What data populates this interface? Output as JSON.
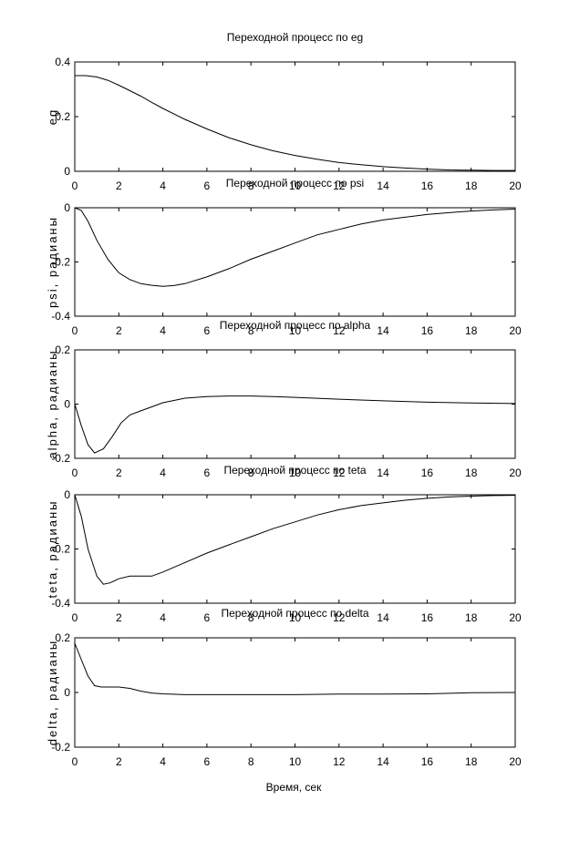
{
  "figure": {
    "xlabel": "Время, сек"
  },
  "chart_data": [
    {
      "type": "line",
      "title": "Переходной процесс по eg",
      "ylabel": "eg",
      "xlabel": "",
      "xlim": [
        0,
        20
      ],
      "ylim": [
        0,
        0.4
      ],
      "xticks": [
        "0",
        "2",
        "4",
        "6",
        "8",
        "10",
        "12",
        "14",
        "16",
        "18",
        "20"
      ],
      "yticks": [
        {
          "v": 0.4,
          "label": "0.4"
        },
        {
          "v": 0.2,
          "label": "0.2"
        },
        {
          "v": 0,
          "label": "0"
        }
      ],
      "grid": false,
      "x": [
        0,
        0.5,
        1,
        1.5,
        2,
        2.5,
        3,
        3.5,
        4,
        5,
        6,
        7,
        8,
        9,
        10,
        11,
        12,
        13,
        14,
        15,
        16,
        17,
        18,
        19,
        20
      ],
      "y": [
        0.35,
        0.35,
        0.345,
        0.333,
        0.315,
        0.295,
        0.275,
        0.252,
        0.23,
        0.19,
        0.155,
        0.123,
        0.097,
        0.075,
        0.058,
        0.044,
        0.032,
        0.024,
        0.017,
        0.012,
        0.008,
        0.005,
        0.004,
        0.003,
        0.003
      ]
    },
    {
      "type": "line",
      "title": "Переходной процесс по psi",
      "ylabel": "psi, радианы",
      "xlabel": "",
      "xlim": [
        0,
        20
      ],
      "ylim": [
        -0.4,
        0
      ],
      "xticks": [
        "0",
        "2",
        "4",
        "6",
        "8",
        "10",
        "12",
        "14",
        "16",
        "18",
        "20"
      ],
      "yticks": [
        {
          "v": 0,
          "label": "0"
        },
        {
          "v": -0.2,
          "label": "-0.2"
        },
        {
          "v": -0.4,
          "label": "-0.4"
        }
      ],
      "grid": false,
      "x": [
        0,
        0.3,
        0.6,
        1,
        1.5,
        2,
        2.5,
        3,
        3.5,
        4,
        4.5,
        5,
        6,
        7,
        8,
        9,
        10,
        11,
        12,
        13,
        14,
        15,
        16,
        17,
        18,
        19,
        20
      ],
      "y": [
        0,
        -0.01,
        -0.05,
        -0.12,
        -0.19,
        -0.24,
        -0.265,
        -0.28,
        -0.286,
        -0.29,
        -0.287,
        -0.28,
        -0.255,
        -0.225,
        -0.19,
        -0.16,
        -0.13,
        -0.1,
        -0.08,
        -0.06,
        -0.045,
        -0.035,
        -0.025,
        -0.018,
        -0.012,
        -0.008,
        -0.005
      ]
    },
    {
      "type": "line",
      "title": "Переходной процесс по alpha",
      "ylabel": "alpha, радианы",
      "xlabel": "",
      "xlim": [
        0,
        20
      ],
      "ylim": [
        -0.2,
        0.2
      ],
      "xticks": [
        "0",
        "2",
        "4",
        "6",
        "8",
        "10",
        "12",
        "14",
        "16",
        "18",
        "20"
      ],
      "yticks": [
        {
          "v": 0.2,
          "label": "0.2"
        },
        {
          "v": 0,
          "label": "0"
        },
        {
          "v": -0.2,
          "label": "-0.2"
        }
      ],
      "grid": false,
      "x": [
        0,
        0.3,
        0.6,
        0.9,
        1.3,
        1.7,
        2.1,
        2.5,
        3,
        3.5,
        4,
        5,
        6,
        7,
        8,
        9,
        10,
        12,
        14,
        16,
        18,
        20
      ],
      "y": [
        0,
        -0.08,
        -0.15,
        -0.18,
        -0.165,
        -0.12,
        -0.07,
        -0.04,
        -0.025,
        -0.01,
        0.005,
        0.022,
        0.028,
        0.03,
        0.03,
        0.028,
        0.025,
        0.018,
        0.012,
        0.007,
        0.004,
        0.002
      ]
    },
    {
      "type": "line",
      "title": "Переходной процесс по teta",
      "ylabel": "teta, радианы",
      "xlabel": "",
      "xlim": [
        0,
        20
      ],
      "ylim": [
        -0.4,
        0
      ],
      "xticks": [
        "0",
        "2",
        "4",
        "6",
        "8",
        "10",
        "12",
        "14",
        "16",
        "18",
        "20"
      ],
      "yticks": [
        {
          "v": 0,
          "label": "0"
        },
        {
          "v": -0.2,
          "label": "-0.2"
        },
        {
          "v": -0.4,
          "label": "-0.4"
        }
      ],
      "grid": false,
      "x": [
        0,
        0.3,
        0.6,
        1,
        1.3,
        1.6,
        2,
        2.5,
        3,
        3.5,
        4,
        5,
        6,
        7,
        8,
        9,
        10,
        11,
        12,
        13,
        14,
        15,
        16,
        17,
        18,
        19,
        20
      ],
      "y": [
        0,
        -0.08,
        -0.2,
        -0.3,
        -0.33,
        -0.325,
        -0.31,
        -0.3,
        -0.3,
        -0.3,
        -0.285,
        -0.25,
        -0.215,
        -0.185,
        -0.155,
        -0.125,
        -0.1,
        -0.075,
        -0.055,
        -0.04,
        -0.03,
        -0.02,
        -0.013,
        -0.008,
        -0.005,
        -0.003,
        -0.002
      ]
    },
    {
      "type": "line",
      "title": "Переходной процесс по delta",
      "ylabel": "delta, радианы",
      "xlabel": "",
      "xlim": [
        0,
        20
      ],
      "ylim": [
        -0.2,
        0.2
      ],
      "xticks": [
        "0",
        "2",
        "4",
        "6",
        "8",
        "10",
        "12",
        "14",
        "16",
        "18",
        "20"
      ],
      "yticks": [
        {
          "v": 0.2,
          "label": "0.2"
        },
        {
          "v": 0,
          "label": "0"
        },
        {
          "v": -0.2,
          "label": "-0.2"
        }
      ],
      "grid": false,
      "x": [
        0,
        0.3,
        0.6,
        0.9,
        1.2,
        1.6,
        2,
        2.5,
        3,
        3.5,
        4,
        5,
        6,
        8,
        10,
        12,
        14,
        16,
        18,
        20
      ],
      "y": [
        0.18,
        0.12,
        0.06,
        0.025,
        0.02,
        0.02,
        0.02,
        0.015,
        0.005,
        -0.002,
        -0.005,
        -0.008,
        -0.008,
        -0.008,
        -0.008,
        -0.006,
        -0.006,
        -0.005,
        -0.001,
        0
      ]
    }
  ]
}
